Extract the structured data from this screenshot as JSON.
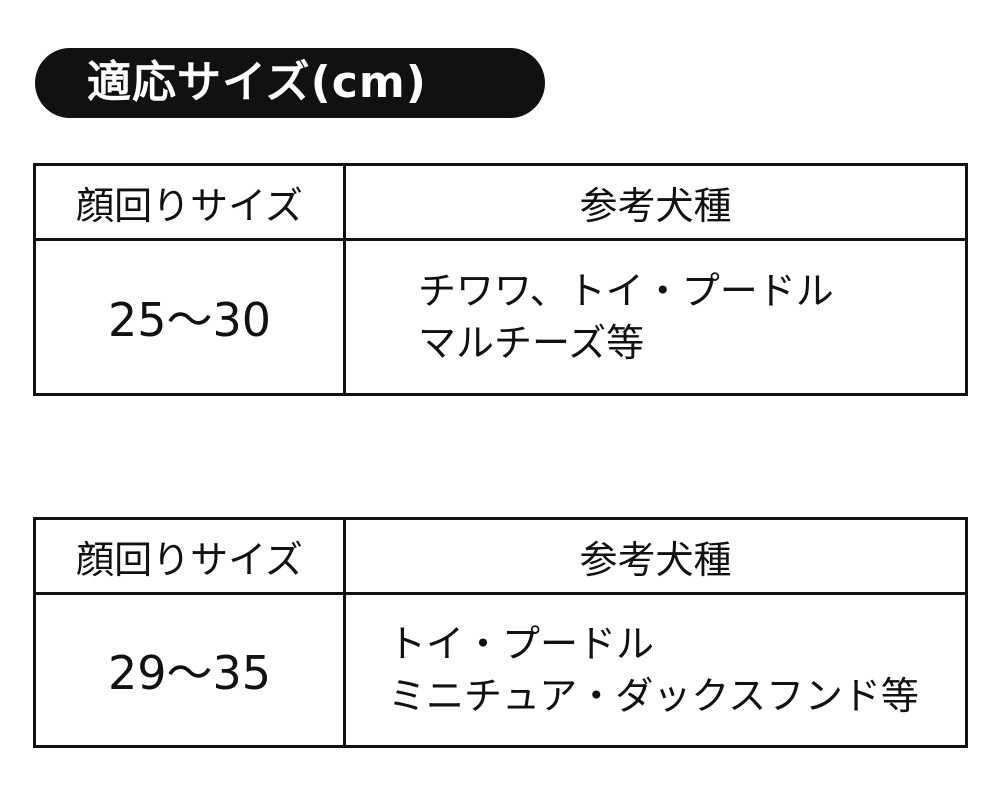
{
  "title": "適応サイズ(cm)",
  "tables": [
    {
      "headers": [
        "顔回りサイズ",
        "参考犬種"
      ],
      "size": "25～30",
      "breeds": [
        "チワワ、トイ・プードル",
        "マルチーズ等"
      ]
    },
    {
      "headers": [
        "顔回りサイズ",
        "参考犬種"
      ],
      "size": "29～35",
      "breeds": [
        "トイ・プードル",
        "ミニチュア・ダックスフンド等"
      ]
    }
  ]
}
